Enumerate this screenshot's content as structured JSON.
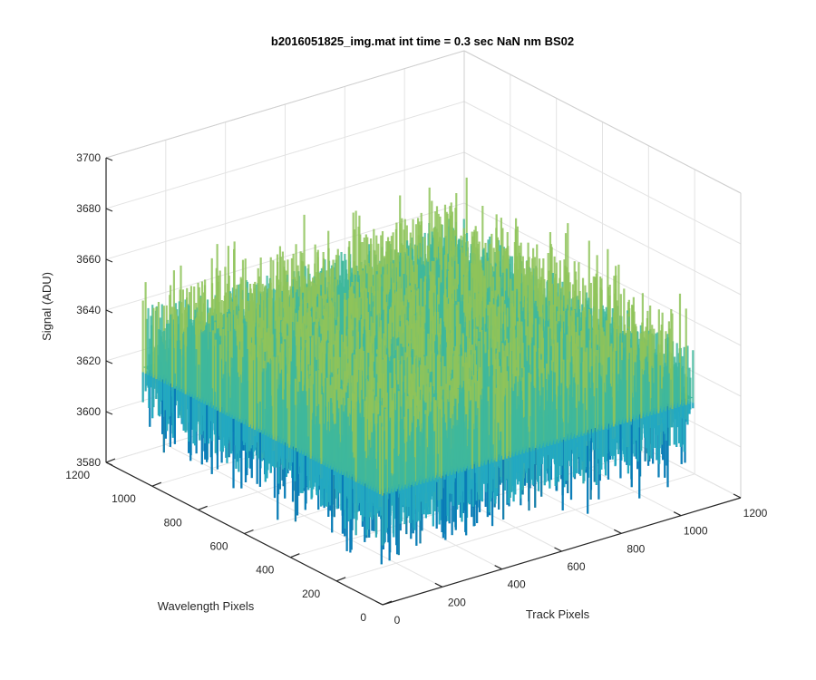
{
  "chart_data": {
    "type": "surface",
    "title": "b2016051825_img.mat int time = 0.3 sec  NaN nm BS02",
    "xlabel": "Track Pixels",
    "ylabel": "Wavelength Pixels",
    "zlabel": "Signal (ADU)",
    "xlim": [
      0,
      1200
    ],
    "ylim": [
      0,
      1200
    ],
    "zlim": [
      3580,
      3700
    ],
    "xticks": [
      "0",
      "200",
      "400",
      "600",
      "800",
      "1000",
      "1200"
    ],
    "yticks": [
      "0",
      "200",
      "400",
      "600",
      "800",
      "1000",
      "1200"
    ],
    "zticks": [
      "3580",
      "3600",
      "3620",
      "3640",
      "3660",
      "3680",
      "3700"
    ],
    "surface": {
      "x_range": [
        0,
        1040
      ],
      "y_range": [
        0,
        1040
      ],
      "mean_signal": 3625,
      "noise_range": [
        3590,
        3685
      ],
      "colormap": [
        "#0072bd",
        "#1ea6c8",
        "#3fb89c",
        "#8fc45a",
        "#e0c344"
      ]
    },
    "grid": true,
    "view": "3d-azimuth-rotated"
  }
}
